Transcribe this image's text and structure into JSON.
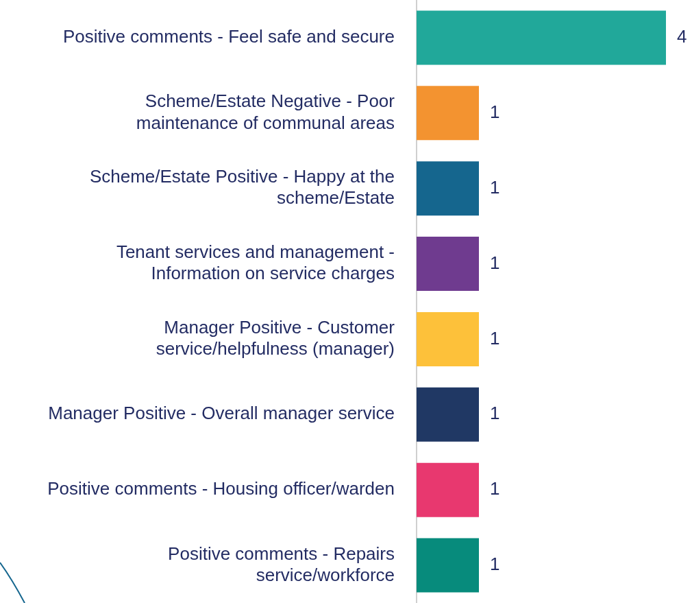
{
  "chart_data": {
    "type": "bar",
    "orientation": "horizontal",
    "categories": [
      "Positive comments - Feel safe and secure",
      "Scheme/Estate Negative - Poor\nmaintenance of communal areas",
      "Scheme/Estate Positive - Happy at the\nscheme/Estate",
      "Tenant services and management -\nInformation on service charges",
      "Manager Positive - Customer\nservice/helpfulness (manager)",
      "Manager Positive - Overall manager service",
      "Positive comments - Housing officer/warden",
      "Positive comments - Repairs\nservice/workforce"
    ],
    "values": [
      4,
      1,
      1,
      1,
      1,
      1,
      1,
      1
    ],
    "colors": [
      "#21a89a",
      "#f39330",
      "#15668e",
      "#6f3b8f",
      "#fdc13a",
      "#203864",
      "#e8386f",
      "#078b7c"
    ],
    "data_labels": true,
    "legend": false
  }
}
